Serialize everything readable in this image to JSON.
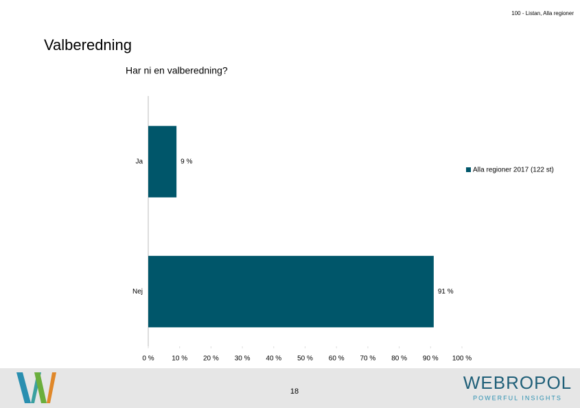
{
  "header": "100 - Listan, Alla regioner",
  "slide_title": "Valberedning",
  "page_number": "18",
  "logo_text": "WEBROPOL",
  "logo_tagline": "POWERFUL INSIGHTS",
  "chart_data": {
    "type": "hbar",
    "title": "Har ni en valberedning?",
    "categories": [
      "Ja",
      "Nej"
    ],
    "series": [
      {
        "name": "Alla regioner 2017 (122 st)",
        "color": "#00566a",
        "values": [
          9,
          91
        ],
        "value_labels": [
          "9 %",
          "91 %"
        ]
      }
    ],
    "xlim": [
      0,
      100
    ],
    "xticks": [
      {
        "value": 0,
        "label": "0 %"
      },
      {
        "value": 10,
        "label": "10 %"
      },
      {
        "value": 20,
        "label": "20 %"
      },
      {
        "value": 30,
        "label": "30 %"
      },
      {
        "value": 40,
        "label": "40 %"
      },
      {
        "value": 50,
        "label": "50 %"
      },
      {
        "value": 60,
        "label": "60 %"
      },
      {
        "value": 70,
        "label": "70 %"
      },
      {
        "value": 80,
        "label": "80 %"
      },
      {
        "value": 90,
        "label": "90 %"
      },
      {
        "value": 100,
        "label": "100 %"
      }
    ],
    "grid": false,
    "legend": "right"
  }
}
